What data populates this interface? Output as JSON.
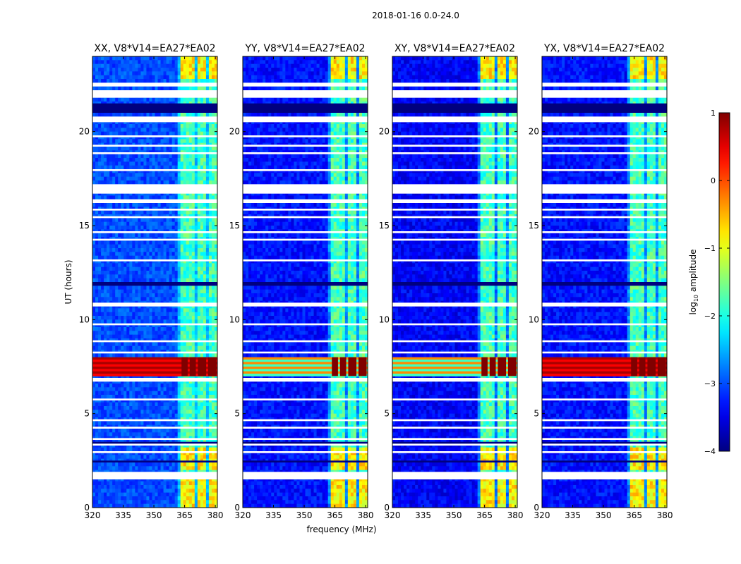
{
  "chart_data": {
    "type": "heatmap",
    "title": "2018-01-16 0.0-24.0",
    "xlabel": "frequency (MHz)",
    "ylabel": "UT (hours)",
    "xlim": [
      320,
      381
    ],
    "ylim": [
      0,
      24
    ],
    "xticks": [
      320,
      335,
      350,
      365,
      380
    ],
    "yticks": [
      0,
      5,
      10,
      15,
      20
    ],
    "colorbar": {
      "label_base": "log",
      "label_sub": "10",
      "label_rest": " amplitude",
      "range": [
        -4,
        1
      ],
      "ticks": [
        "1",
        "0",
        "−1",
        "−2",
        "−3",
        "−4"
      ],
      "tick_values": [
        1,
        0,
        -1,
        -2,
        -3,
        -4
      ],
      "colormap": "jet"
    },
    "panels": [
      {
        "label": "XX, V8*V14=EA27*EA02",
        "base_level": -3.0
      },
      {
        "label": "YY, V8*V14=EA27*EA02",
        "base_level": -3.3
      },
      {
        "label": "XY, V8*V14=EA27*EA02",
        "base_level": -3.4
      },
      {
        "label": "YX, V8*V14=EA27*EA02",
        "base_level": -3.3
      }
    ],
    "rfi_bands_mhz": [
      {
        "from": 363.5,
        "to": 366.5
      },
      {
        "from": 367.5,
        "to": 370.5
      },
      {
        "from": 371.5,
        "to": 375.5
      },
      {
        "from": 376.5,
        "to": 380.5
      }
    ],
    "rfi_level": -1.8,
    "flagged_hours_white": [
      [
        22.4,
        22.6
      ],
      [
        21.8,
        22.2
      ],
      [
        20.5,
        20.8
      ],
      [
        19.7,
        19.8
      ],
      [
        19.2,
        19.3
      ],
      [
        18.8,
        18.9
      ],
      [
        17.9,
        18.0
      ],
      [
        16.7,
        17.2
      ],
      [
        16.2,
        16.4
      ],
      [
        15.8,
        15.9
      ],
      [
        15.4,
        15.5
      ],
      [
        14.6,
        14.7
      ],
      [
        14.2,
        14.3
      ],
      [
        13.1,
        13.2
      ],
      [
        10.7,
        10.9
      ],
      [
        9.7,
        9.8
      ],
      [
        8.8,
        8.9
      ],
      [
        8.2,
        8.3
      ],
      [
        6.7,
        6.9
      ],
      [
        5.7,
        5.8
      ],
      [
        4.6,
        4.7
      ],
      [
        4.2,
        4.3
      ],
      [
        3.6,
        3.7
      ],
      [
        3.3,
        3.4
      ],
      [
        2.9,
        3.0
      ],
      [
        1.5,
        1.9
      ]
    ],
    "flagged_hours_dark": [
      [
        21.0,
        21.5
      ],
      [
        11.8,
        12.0
      ],
      [
        3.4,
        3.5
      ],
      [
        2.4,
        2.5
      ]
    ],
    "rfi_event_hours": [
      7.0,
      8.0
    ],
    "rfi_event_level": 0.8,
    "bright_rfi_hours": [
      [
        0,
        1.5
      ],
      [
        1.9,
        3.2
      ],
      [
        22.8,
        24
      ]
    ],
    "bright_rfi_level": -0.8
  }
}
